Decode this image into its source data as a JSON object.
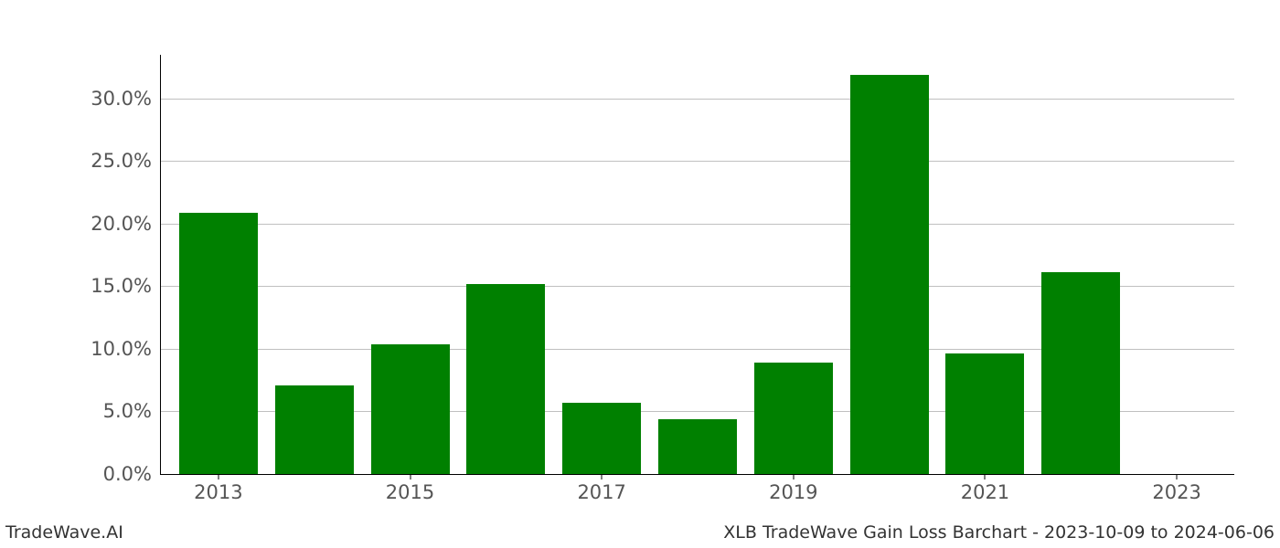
{
  "chart": {
    "type": "bar",
    "background_color": "#ffffff",
    "grid_color": "#c0c0c0",
    "axis_color": "#000000",
    "tick_label_color": "#555555",
    "tick_fontsize": 21,
    "ylim": [
      0,
      33.5
    ],
    "yticks": [
      0,
      5,
      10,
      15,
      20,
      25,
      30
    ],
    "ytick_labels": [
      "0.0%",
      "5.0%",
      "10.0%",
      "15.0%",
      "20.0%",
      "25.0%",
      "30.0%"
    ],
    "xlim": [
      2012.4,
      2023.6
    ],
    "xticks": [
      2013,
      2015,
      2017,
      2019,
      2021,
      2023
    ],
    "xtick_labels": [
      "2013",
      "2015",
      "2017",
      "2019",
      "2021",
      "2023"
    ],
    "bar_width": 0.82,
    "bars": [
      {
        "x": 2013,
        "value": 20.9,
        "color": "#008000"
      },
      {
        "x": 2014,
        "value": 7.1,
        "color": "#008000"
      },
      {
        "x": 2015,
        "value": 10.4,
        "color": "#008000"
      },
      {
        "x": 2016,
        "value": 15.2,
        "color": "#008000"
      },
      {
        "x": 2017,
        "value": 5.7,
        "color": "#008000"
      },
      {
        "x": 2018,
        "value": 4.4,
        "color": "#008000"
      },
      {
        "x": 2019,
        "value": 8.9,
        "color": "#008000"
      },
      {
        "x": 2020,
        "value": 31.9,
        "color": "#008000"
      },
      {
        "x": 2021,
        "value": 9.6,
        "color": "#008000"
      },
      {
        "x": 2022,
        "value": 16.1,
        "color": "#008000"
      }
    ]
  },
  "footer": {
    "left": "TradeWave.AI",
    "right": "XLB TradeWave Gain Loss Barchart - 2023-10-09 to 2024-06-06",
    "fontsize": 19,
    "color": "#333333"
  }
}
